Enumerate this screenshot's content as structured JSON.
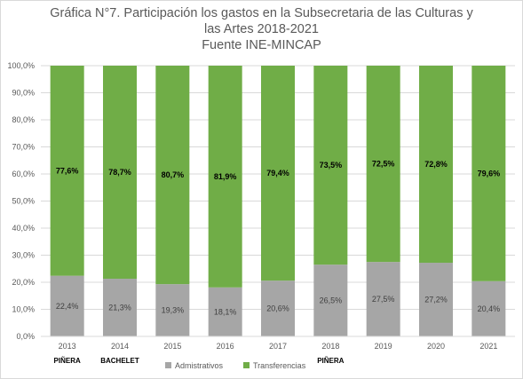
{
  "chart_data": {
    "type": "bar",
    "stacked": true,
    "title_lines": [
      "Gráfica N°7. Participación los gastos en la Subsecretaria de las Culturas y",
      "las Artes 2018-2021",
      "Fuente INE-MINCAP"
    ],
    "categories": [
      "2013",
      "2014",
      "2015",
      "2016",
      "2017",
      "2018",
      "2019",
      "2020",
      "2021"
    ],
    "president_labels": [
      "PIÑERA",
      "BACHELET",
      "",
      "",
      "",
      "PIÑERA",
      "",
      "",
      ""
    ],
    "series": [
      {
        "name": "Admistrativos",
        "color": "#a6a6a6",
        "values": [
          22.4,
          21.3,
          19.3,
          18.1,
          20.6,
          26.5,
          27.5,
          27.2,
          20.4
        ],
        "labels": [
          "22,4%",
          "21,3%",
          "19,3%",
          "18,1%",
          "20,6%",
          "26,5%",
          "27,5%",
          "27,2%",
          "20,4%"
        ]
      },
      {
        "name": "Transferencias",
        "color": "#70ad47",
        "values": [
          77.6,
          78.7,
          80.7,
          81.9,
          79.4,
          73.5,
          72.5,
          72.8,
          79.6
        ],
        "labels": [
          "77,6%",
          "78,7%",
          "80,7%",
          "81,9%",
          "79,4%",
          "73,5%",
          "72,5%",
          "72,8%",
          "79,6%"
        ]
      }
    ],
    "ylim": [
      0,
      100
    ],
    "yticks": [
      "0,0%",
      "10,0%",
      "20,0%",
      "30,0%",
      "40,0%",
      "50,0%",
      "60,0%",
      "70,0%",
      "80,0%",
      "90,0%",
      "100,0%"
    ],
    "grid": true,
    "legend_position": "bottom"
  }
}
